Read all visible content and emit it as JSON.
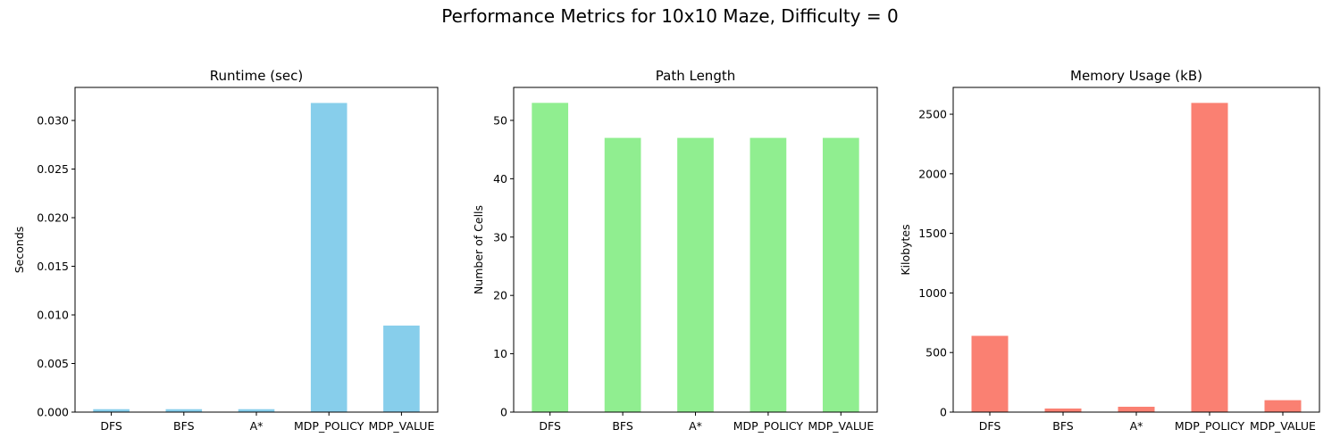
{
  "figure": {
    "title": "Performance Metrics for 10x10 Maze, Difficulty = 0"
  },
  "chart_data": [
    {
      "type": "bar",
      "title": "Runtime (sec)",
      "xlabel": "",
      "ylabel": "Seconds",
      "categories": [
        "DFS",
        "BFS",
        "A*",
        "MDP_POLICY",
        "MDP_VALUE"
      ],
      "values": [
        0.0003,
        0.0003,
        0.0003,
        0.0318,
        0.0089
      ],
      "ylim": [
        0,
        0.0334
      ],
      "yticks": [
        0.0,
        0.005,
        0.01,
        0.015,
        0.02,
        0.025,
        0.03
      ],
      "ytick_labels": [
        "0.000",
        "0.005",
        "0.010",
        "0.015",
        "0.020",
        "0.025",
        "0.030"
      ],
      "color": "#87CEEB",
      "grid": false
    },
    {
      "type": "bar",
      "title": "Path Length",
      "xlabel": "",
      "ylabel": "Number of Cells",
      "categories": [
        "DFS",
        "BFS",
        "A*",
        "MDP_POLICY",
        "MDP_VALUE"
      ],
      "values": [
        53,
        47,
        47,
        47,
        47
      ],
      "ylim": [
        0,
        55.65
      ],
      "yticks": [
        0,
        10,
        20,
        30,
        40,
        50
      ],
      "ytick_labels": [
        "0",
        "10",
        "20",
        "30",
        "40",
        "50"
      ],
      "color": "#90EE90",
      "grid": false
    },
    {
      "type": "bar",
      "title": "Memory Usage (kB)",
      "xlabel": "",
      "ylabel": "Kilobytes",
      "categories": [
        "DFS",
        "BFS",
        "A*",
        "MDP_POLICY",
        "MDP_VALUE"
      ],
      "values": [
        640,
        30,
        45,
        2595,
        100
      ],
      "ylim": [
        0,
        2725
      ],
      "yticks": [
        0,
        500,
        1000,
        1500,
        2000,
        2500
      ],
      "ytick_labels": [
        "0",
        "500",
        "1000",
        "1500",
        "2000",
        "2500"
      ],
      "color": "#FA8072",
      "grid": false
    }
  ]
}
